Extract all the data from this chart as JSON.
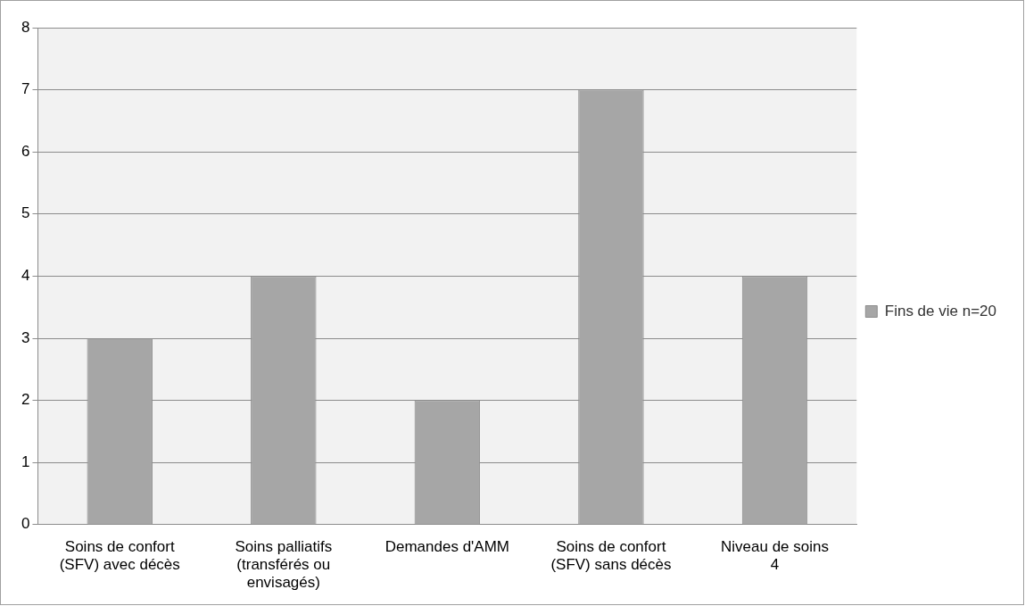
{
  "chart_data": {
    "type": "bar",
    "categories": [
      "Soins de confort (SFV) avec décès",
      "Soins palliatifs (transférés ou envisagés)",
      "Demandes d'AMM",
      "Soins de confort (SFV) sans décès",
      "Niveau de soins 4"
    ],
    "series": [
      {
        "name": "Fins de vie n=20",
        "color": "#a6a6a6",
        "values": [
          3,
          4,
          2,
          7,
          4
        ]
      }
    ],
    "ylim": [
      0,
      8
    ],
    "yticks": [
      0,
      1,
      2,
      3,
      4,
      5,
      6,
      7,
      8
    ],
    "grid": "y",
    "legend": "right"
  }
}
